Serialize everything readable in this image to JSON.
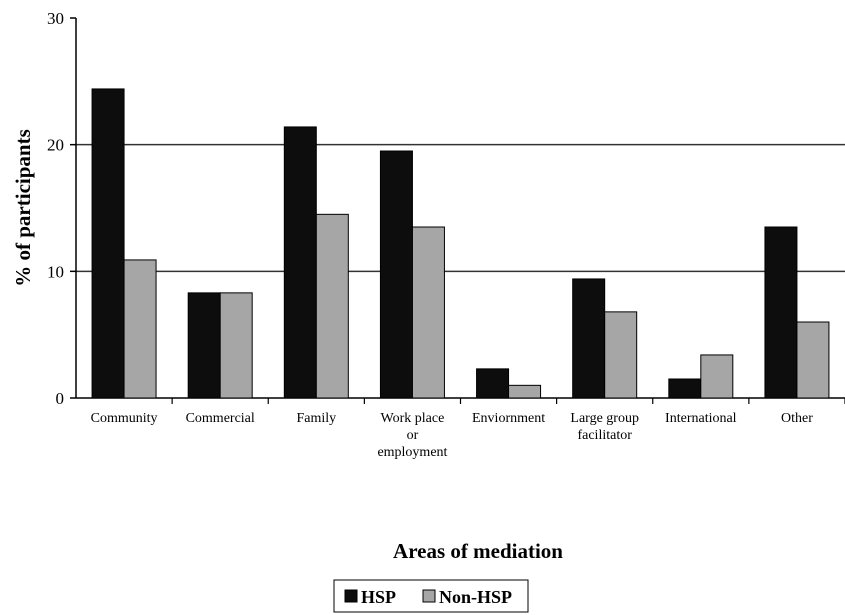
{
  "chart_data": {
    "type": "bar",
    "title": "",
    "xlabel": "Areas of mediation",
    "ylabel": "% of participants",
    "ylim": [
      0,
      30
    ],
    "yticks": [
      "0",
      "10",
      "20",
      "30"
    ],
    "grid": "horizontal at 10 and 20",
    "legend_position": "bottom-center",
    "categories": [
      [
        "Community"
      ],
      [
        "Commercial"
      ],
      [
        "Family"
      ],
      [
        "Work place",
        "or",
        "employment"
      ],
      [
        "Enviornment"
      ],
      [
        "Large group",
        "facilitator"
      ],
      [
        "International"
      ],
      [
        "Other"
      ]
    ],
    "series": [
      {
        "name": "HSP",
        "color": "#0d0d0d",
        "values": [
          24.4,
          8.3,
          21.4,
          19.5,
          2.3,
          9.4,
          1.5,
          13.5
        ]
      },
      {
        "name": "Non-HSP",
        "color": "#a6a6a6",
        "values": [
          10.9,
          8.3,
          14.5,
          13.5,
          1.0,
          6.8,
          3.4,
          6.0
        ]
      }
    ]
  }
}
